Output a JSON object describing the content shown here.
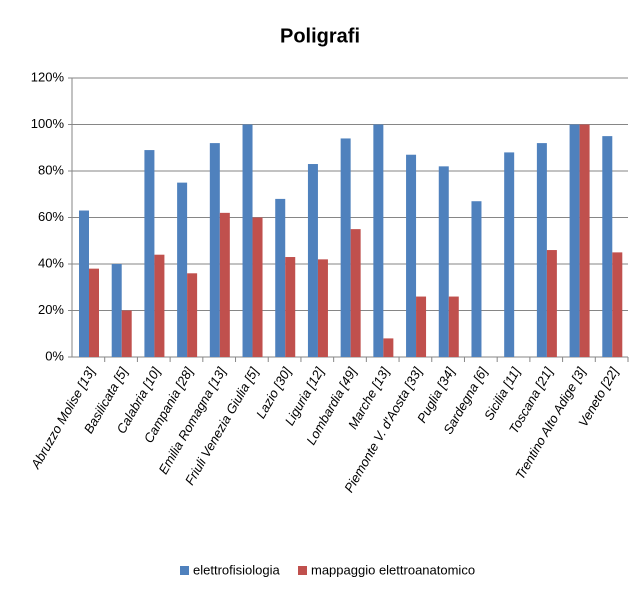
{
  "chart_data": {
    "type": "bar",
    "title": "Poligrafi",
    "categories": [
      "Abruzzo Molise [13]",
      "Basilicata [5]",
      "Calabria [10]",
      "Campania [28]",
      "Emilia Romagna [13]",
      "Friuli Venezia Giulia [5]",
      "Lazio [30]",
      "Liguria [12]",
      "Lombardia [49]",
      "Marche [13]",
      "Piemonte V. d'Aosta [33]",
      "Puglia [34]",
      "Sardegna [6]",
      "Sicilia [11]",
      "Toscana [21]",
      "Trentino Alto Adige [3]",
      "Veneto [22]"
    ],
    "series": [
      {
        "name": "elettrofisiologia",
        "color": "#4f81bd",
        "values": [
          63,
          40,
          89,
          75,
          92,
          100,
          68,
          83,
          94,
          100,
          87,
          82,
          67,
          88,
          92,
          100,
          95
        ]
      },
      {
        "name": "mappaggio elettroanatomico",
        "color": "#c0504d",
        "values": [
          38,
          20,
          44,
          36,
          62,
          60,
          43,
          42,
          55,
          8,
          26,
          26,
          0,
          0,
          46,
          100,
          45
        ]
      }
    ],
    "ylim": [
      0,
      120
    ],
    "yticks": [
      {
        "value": 0,
        "label": "0%"
      },
      {
        "value": 20,
        "label": "20%"
      },
      {
        "value": 40,
        "label": "40%"
      },
      {
        "value": 60,
        "label": "60%"
      },
      {
        "value": 80,
        "label": "80%"
      },
      {
        "value": 100,
        "label": "100%"
      },
      {
        "value": 120,
        "label": "120%"
      }
    ],
    "grid": true,
    "legend": "bottom"
  }
}
